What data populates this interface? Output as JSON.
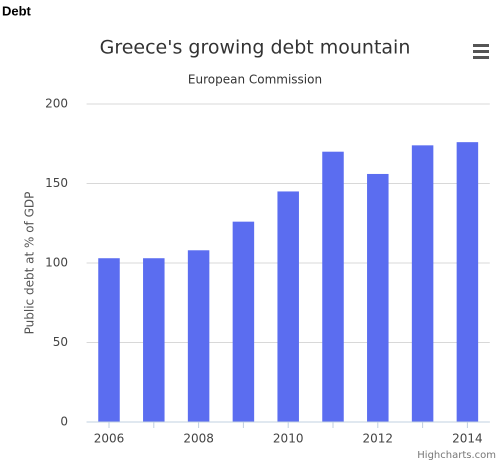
{
  "header": {
    "title": "Debt"
  },
  "chart_data": {
    "type": "bar",
    "title": "Greece's growing debt mountain",
    "subtitle": "European Commission",
    "y_label": "Public debt at % of GDP",
    "credits": "Highcharts.com",
    "categories": [
      "2006",
      null,
      "2008",
      null,
      "2010",
      null,
      "2012",
      null,
      "2014"
    ],
    "values": [
      103,
      103,
      108,
      126,
      145,
      170,
      156,
      174,
      176
    ],
    "color": "#5b6df0",
    "ylim": [
      0,
      200
    ],
    "yticks": [
      0,
      50,
      100,
      150,
      200
    ],
    "grid": true
  }
}
